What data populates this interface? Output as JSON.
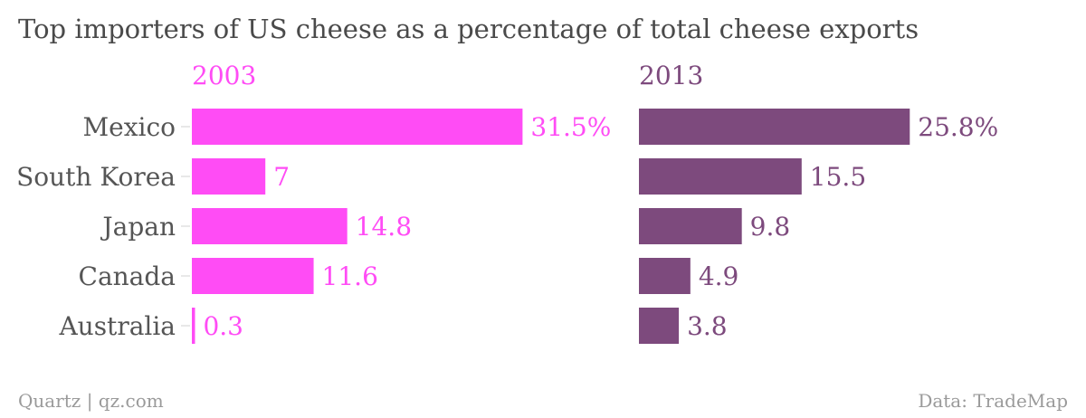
{
  "chart_data": {
    "type": "bar",
    "orientation": "horizontal",
    "title": "Top importers of US cheese as a percentage of total cheese exports",
    "categories": [
      "Mexico",
      "South Korea",
      "Japan",
      "Canada",
      "Australia"
    ],
    "series": [
      {
        "name": "2003",
        "color": "#ff4cf5",
        "values": [
          31.5,
          7,
          14.8,
          11.6,
          0.3
        ],
        "labels": [
          "31.5%",
          "7",
          "14.8",
          "11.6",
          "0.3"
        ]
      },
      {
        "name": "2013",
        "color": "#7d4a7d",
        "values": [
          25.8,
          15.5,
          9.8,
          4.9,
          3.8
        ],
        "labels": [
          "25.8%",
          "15.5",
          "9.8",
          "4.9",
          "3.8"
        ]
      }
    ],
    "xlim": [
      0,
      31.5
    ],
    "grid": false
  },
  "footer": {
    "source_left": "Quartz | qz.com",
    "source_right": "Data: TradeMap"
  }
}
